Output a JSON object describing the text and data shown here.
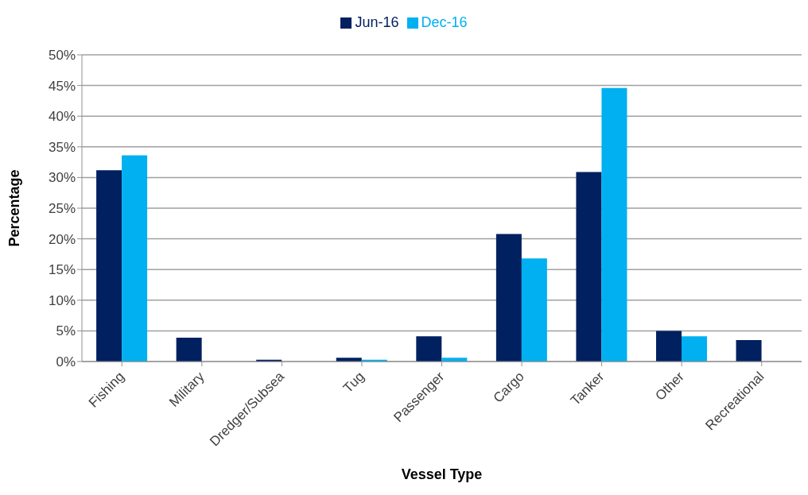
{
  "chart_data": {
    "type": "bar",
    "xlabel": "Vessel Type",
    "ylabel": "Percentage",
    "categories": [
      "Fishing",
      "Military",
      "Dredger/Subsea",
      "Tug",
      "Passenger",
      "Cargo",
      "Tanker",
      "Other",
      "Recreational"
    ],
    "series": [
      {
        "name": "Jun-16",
        "color": "#002060",
        "values": [
          31.2,
          3.9,
          0.3,
          0.6,
          4.1,
          20.8,
          30.9,
          5.0,
          3.5
        ]
      },
      {
        "name": "Dec-16",
        "color": "#00b0f0",
        "values": [
          33.6,
          0,
          0,
          0.3,
          0.6,
          16.8,
          44.6,
          4.1,
          0
        ]
      }
    ],
    "ylim": [
      0,
      50
    ],
    "yticks": [
      {
        "value": 0,
        "label": "0%"
      },
      {
        "value": 5,
        "label": "5%"
      },
      {
        "value": 10,
        "label": "10%"
      },
      {
        "value": 15,
        "label": "15%"
      },
      {
        "value": 20,
        "label": "20%"
      },
      {
        "value": 25,
        "label": "25%"
      },
      {
        "value": 30,
        "label": "30%"
      },
      {
        "value": 35,
        "label": "35%"
      },
      {
        "value": 40,
        "label": "40%"
      },
      {
        "value": 45,
        "label": "45%"
      },
      {
        "value": 50,
        "label": "50%"
      }
    ],
    "grid": "y",
    "legend": "top"
  }
}
